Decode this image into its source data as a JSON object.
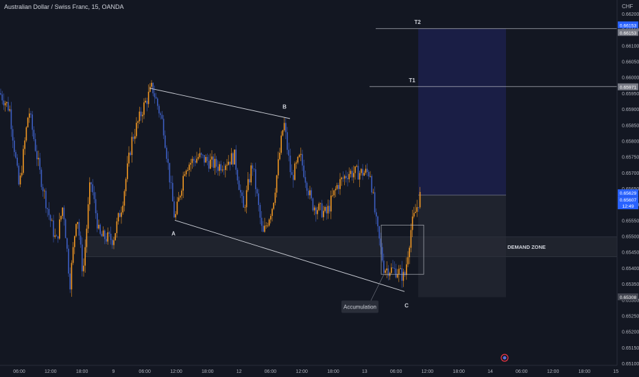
{
  "header": {
    "title": "Australian Dollar / Swiss Franc, 15, OANDA"
  },
  "currency": "CHF",
  "colors": {
    "background": "#131722",
    "up": "#f59a23",
    "down": "#3d5fc4",
    "line": "#d1d4dc",
    "target_zone": "#1e2152",
    "stop_zone": "#2a2e39",
    "demand_zone": "#1f232d"
  },
  "chart_data": {
    "type": "candlestick",
    "symbol": "AUDCHF",
    "timeframe": "15",
    "ylim": [
      0.651,
      0.662
    ],
    "y_ticks": [
      "0.66200",
      "0.66150",
      "0.66100",
      "0.66050",
      "0.66000",
      "0.65950",
      "0.65900",
      "0.65850",
      "0.65800",
      "0.65750",
      "0.65700",
      "0.65650",
      "0.65600",
      "0.65550",
      "0.65500",
      "0.65450",
      "0.65400",
      "0.65350",
      "0.65300",
      "0.65250",
      "0.65200",
      "0.65150",
      "0.65100"
    ],
    "x_ticks": [
      "06:00",
      "12:00",
      "18:00",
      "9",
      "06:00",
      "12:00",
      "18:00",
      "12",
      "06:00",
      "12:00",
      "18:00",
      "13",
      "06:00",
      "12:00",
      "18:00",
      "14",
      "06:00",
      "12:00",
      "18:00",
      "15"
    ],
    "price_path": [
      [
        0,
        0.6595
      ],
      [
        14,
        0.659
      ],
      [
        28,
        0.6565
      ],
      [
        42,
        0.659
      ],
      [
        58,
        0.657
      ],
      [
        70,
        0.6558
      ],
      [
        82,
        0.6548
      ],
      [
        92,
        0.656
      ],
      [
        102,
        0.6535
      ],
      [
        112,
        0.6558
      ],
      [
        121,
        0.6538
      ],
      [
        132,
        0.6568
      ],
      [
        145,
        0.655
      ],
      [
        165,
        0.6549
      ],
      [
        178,
        0.656
      ],
      [
        192,
        0.658
      ],
      [
        208,
        0.659
      ],
      [
        222,
        0.6597
      ],
      [
        238,
        0.6585
      ],
      [
        255,
        0.6555
      ],
      [
        270,
        0.6572
      ],
      [
        290,
        0.6575
      ],
      [
        318,
        0.6572
      ],
      [
        342,
        0.6575
      ],
      [
        355,
        0.6558
      ],
      [
        368,
        0.6573
      ],
      [
        383,
        0.655
      ],
      [
        398,
        0.656
      ],
      [
        414,
        0.6586
      ],
      [
        425,
        0.6568
      ],
      [
        438,
        0.6575
      ],
      [
        455,
        0.656
      ],
      [
        476,
        0.6557
      ],
      [
        492,
        0.6566
      ],
      [
        508,
        0.657
      ],
      [
        525,
        0.657
      ],
      [
        540,
        0.657
      ],
      [
        548,
        0.6555
      ],
      [
        560,
        0.654
      ],
      [
        580,
        0.6539
      ],
      [
        590,
        0.6537
      ],
      [
        600,
        0.6553
      ],
      [
        613,
        0.6563
      ]
    ],
    "annotations": {
      "points": [
        {
          "label": "A",
          "price": 0.6553
        },
        {
          "label": "B",
          "price": 0.6588
        },
        {
          "label": "C",
          "price": 0.6533
        }
      ],
      "accumulation_label": "Accumulation",
      "demand_zone_label": "DEMAND ZONE",
      "demand_zone": [
        0.65435,
        0.65498
      ],
      "targets": [
        {
          "label": "T1",
          "price": 0.65971
        },
        {
          "label": "T2",
          "price": 0.66153
        }
      ],
      "entry": 0.65629,
      "stop": 0.65308
    },
    "price_labels": [
      {
        "text": "0.66153",
        "color": "#2962ff"
      },
      {
        "text": "0.66153",
        "color": "#787b86"
      },
      {
        "text": "0.65971",
        "color": "#787b86"
      },
      {
        "text": "0.65629",
        "color": "#2962ff"
      },
      {
        "text": "0.65607",
        "color": "#2962ff"
      },
      {
        "text": "12:49",
        "color": "#2962ff"
      },
      {
        "text": "0.65308",
        "color": "#434651"
      }
    ],
    "grid": false
  }
}
